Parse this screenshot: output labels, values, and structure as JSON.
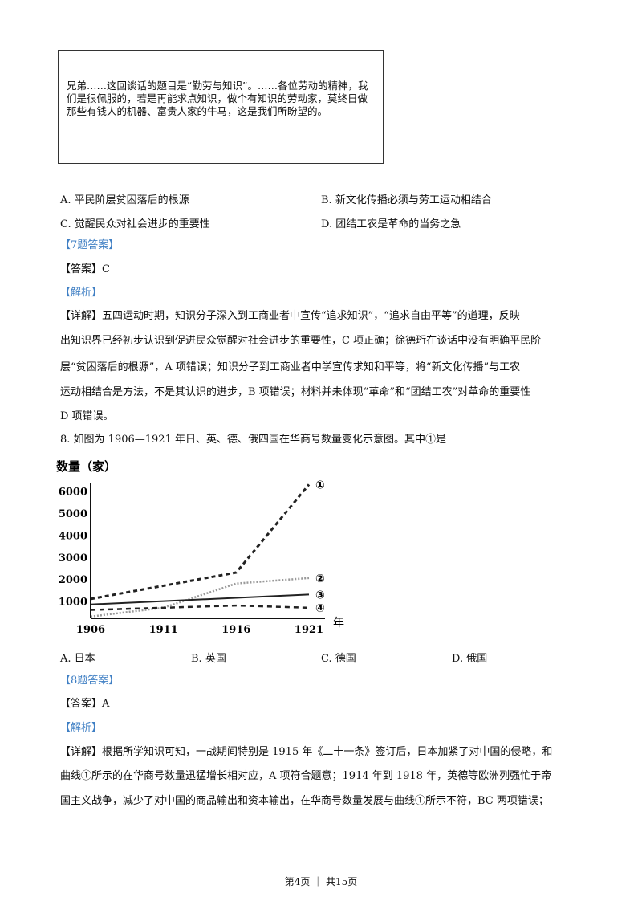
{
  "quote": "兄弟……这回谈话的题目是“勤劳与知识”。……各位劳动的精神，我们是很佩服的，若是再能求点知识，做个有知识的劳动家，莫终日做那些有钱人的机器、富贵人家的牛马，这是我们所盼望的。",
  "q7": {
    "options": [
      "A. 平民阶层贫困落后的根源",
      "B. 新文化传播必须与劳工运动相结合",
      "C. 觉醒民众对社会进步的重要性",
      "D. 团结工农是革命的当务之急"
    ],
    "answer_header": "【7题答案】",
    "answer": "【答案】C",
    "analysis": "【解析】",
    "detail_lines": [
      "【详解】五四运动时期，知识分子深入到工商业者中宣传“追求知识”，“追求自由平等”的道理，反映",
      "出知识界已经初步认识到促进民众觉醒对社会进步的重要性，C 项正确；徐德珩在谈话中没有明确平民阶",
      "层“贫困落后的根源”，A 项错误；知识分子到工商业者中学宣传求知和平等，将“新文化传播”与工农",
      "运动相结合是方法，不是其认识的进步，B 项错误；材料并未体现“革命”和“团结工农”对革命的重要性",
      "D 项错误。"
    ]
  },
  "q8": {
    "question": "8. 如图为 1906—1921 年日、英、德、俄四国在华商号数量变化示意图。其中①是",
    "options": [
      "A. 日本",
      "B. 英国",
      "C. 德国",
      "D. 俄国"
    ],
    "answer_header": "【8题答案】",
    "answer": "【答案】A",
    "analysis": "【解析】",
    "detail_lines": [
      "【详解】根据所学知识可知，一战期间特别是 1915 年《二十一条》签订后，日本加紧了对中国的侵略，和",
      "曲线①所示的在华商号数量迅猛增长相对应，A 项符合题意；1914 年到 1918 年，英德等欧洲列强忙于帝",
      "国主义战争，减少了对中国的商品输出和资本输出，在华商号数量发展与曲线①所示不符，BC 两项错误；"
    ]
  },
  "chart_data": {
    "type": "line",
    "ylabel": "数量（家）",
    "xlabel": "年",
    "x": [
      1906,
      1911,
      1916,
      1921
    ],
    "x_ticks": [
      "1906",
      "1911",
      "1916",
      "1921"
    ],
    "y_ticks": [
      "1000",
      "2000",
      "3000",
      "4000",
      "5000",
      "6000"
    ],
    "ylim": [
      0,
      6500
    ],
    "grid": false,
    "series": [
      {
        "name": "①",
        "values": [
          1100,
          1700,
          2300,
          6300
        ],
        "style": "dashed-bold"
      },
      {
        "name": "②",
        "values": [
          300,
          700,
          1800,
          2050
        ],
        "style": "dotted-gray"
      },
      {
        "name": "③",
        "values": [
          850,
          1000,
          1150,
          1300
        ],
        "style": "solid"
      },
      {
        "name": "④",
        "values": [
          600,
          700,
          800,
          700
        ],
        "style": "dashed"
      }
    ]
  },
  "footer": "第4页 ｜ 共15页"
}
